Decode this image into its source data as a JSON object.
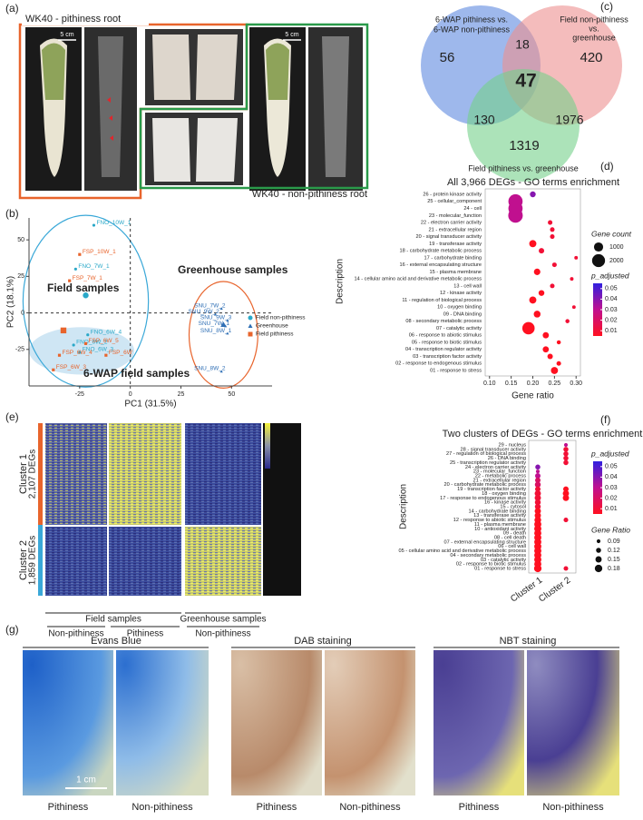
{
  "panel_labels": [
    "(a)",
    "(b)",
    "(c)",
    "(d)",
    "(e)",
    "(f)",
    "(g)"
  ],
  "panel_a": {
    "top_label": "WK40 - pithiness root",
    "bottom_label": "WK40 - non-pithiness root",
    "scale_bars": [
      "5 cm",
      "5 cm"
    ]
  },
  "panel_c": {
    "set_labels": [
      [
        "6-WAP pithiness vs.",
        "6-WAP non-pithiness"
      ],
      [
        "Field non-pithiness",
        "vs.",
        "greenhouse"
      ],
      [
        "Field pithiness vs. greenhouse"
      ]
    ],
    "counts": [
      56,
      18,
      420,
      47,
      130,
      1976,
      1319
    ]
  },
  "panel_e": {
    "clusters": [
      [
        "Cluster 1",
        "2,107 DEGs"
      ],
      [
        "Cluster 2",
        "1,859 DEGs"
      ]
    ],
    "groups": [
      "Field samples",
      "Greenhouse samples"
    ],
    "conditions": [
      "Non-pithiness",
      "Pithiness",
      "Non-pithiness"
    ]
  },
  "panel_g": {
    "stains": [
      "Evans Blue",
      "DAB staining",
      "NBT staining"
    ],
    "captions": [
      "Pithiness",
      "Non-pithiness"
    ],
    "scale_bar": "1 cm"
  },
  "chart_data": [
    {
      "type": "scatter",
      "xlabel": "PC1 (31.5%)",
      "ylabel": "PC2 (18.1%)",
      "xlim": [
        -50,
        70
      ],
      "ylim": [
        -50,
        65
      ],
      "xticks": [
        -25,
        0,
        25,
        50
      ],
      "yticks": [
        -25,
        0,
        25,
        50
      ],
      "annotations": [
        "Field samples",
        "Greenhouse samples",
        "6-WAP field samples"
      ],
      "series": [
        {
          "name": "Field non-pithiness",
          "color": "#2aa8c8",
          "marker": "circle",
          "x": [
            -18,
            -27,
            -21,
            -28,
            -25,
            -22
          ],
          "y": [
            60,
            30,
            -15,
            -22,
            -27,
            12
          ],
          "point_labels": [
            "FNO_10W_1",
            "FNO_7W_1",
            "FNO_6W_4",
            "FNO_6W_2",
            "FNO_6W_3",
            null
          ]
        },
        {
          "name": "Greenhouse",
          "color": "#2f6fb5",
          "marker": "triangle",
          "x": [
            45,
            42,
            48,
            47,
            48,
            45,
            46
          ],
          "y": [
            3,
            -1,
            -5,
            -9,
            -14,
            -40,
            -8
          ],
          "point_labels": [
            "SNU_7W_2",
            "SNU_9W_2",
            "SNU_9W_3",
            "SNU_7W_1",
            "SNU_8W_1",
            "SNU_8W_2",
            null
          ]
        },
        {
          "name": "Field pithiness",
          "color": "#e8642c",
          "marker": "square",
          "x": [
            -25,
            -30,
            -22,
            -35,
            -12,
            -38,
            -33
          ],
          "y": [
            40,
            22,
            -21,
            -29,
            -29,
            -39,
            -12
          ],
          "point_labels": [
            "FSP_10W_1",
            "FSP_7W_1",
            "FSP_6W_5",
            "FSP_6W_4",
            "FSP_6W",
            "FSP_6W_3",
            null
          ]
        }
      ]
    },
    {
      "type": "dot",
      "title": "All 3,966 DEGs - GO terms enrichment",
      "xlabel": "Gene ratio",
      "ylabel": "Description",
      "categories": [
        "26 - protein kinase activity",
        "25 - cellular_component",
        "24 - cell",
        "23 - molecular_function",
        "22 - electron carrier activity",
        "21 - extracellular region",
        "20 - signal transducer activity",
        "19 - transferase activity",
        "18 - carbohydrate metabolic process",
        "17 - carbohydrate binding",
        "16 - external encapsulating structure",
        "15 - plasma membrane",
        "14 - cellular amino acid and derivative metabolic process",
        "13 - cell wall",
        "12 - kinase activity",
        "11 - regulation of biological process",
        "10 - oxygen binding",
        "09 - DNA binding",
        "08 - secondary metabolic process",
        "07 - catalytic activity",
        "06 - response to abiotic stimulus",
        "05 - response to biotic stimulus",
        "04 - transcription regulator activity",
        "03 - transcription factor activity",
        "02 - response to endogenous stimulus",
        "01 - response to stress"
      ],
      "values": [
        0.2,
        0.16,
        0.16,
        0.16,
        0.24,
        0.245,
        0.245,
        0.2,
        0.22,
        0.3,
        0.25,
        0.21,
        0.29,
        0.245,
        0.22,
        0.2,
        0.295,
        0.21,
        0.28,
        0.19,
        0.23,
        0.26,
        0.23,
        0.24,
        0.26,
        0.25
      ],
      "gene_count": [
        400,
        2400,
        2400,
        2500,
        250,
        250,
        250,
        600,
        350,
        150,
        250,
        500,
        150,
        250,
        400,
        600,
        150,
        550,
        200,
        1800,
        450,
        200,
        450,
        350,
        250,
        600
      ],
      "p_adjusted": [
        0.04,
        0.03,
        0.03,
        0.03,
        0.01,
        0.01,
        0.01,
        0.005,
        0.01,
        0.01,
        0.01,
        0.005,
        0.01,
        0.01,
        0.005,
        0.005,
        0.01,
        0.005,
        0.01,
        0.005,
        0.005,
        0.005,
        0.005,
        0.005,
        0.005,
        0.005
      ],
      "xlim": [
        0.09,
        0.31
      ],
      "xticks": [
        {
          "value": 0.1,
          "label": "0.10"
        },
        0.15,
        {
          "value": 0.2,
          "label": "0.20"
        },
        0.25,
        {
          "value": 0.3,
          "label": "0.30"
        }
      ],
      "size_label": "Gene count",
      "size_ticks": [
        1000,
        2000
      ],
      "color_label": "p_adjusted",
      "clim": [
        0.005,
        0.055
      ],
      "color_ticks": [
        0.05,
        0.04,
        0.03,
        0.02,
        0.01
      ],
      "colors": [
        "#ff1020",
        "#c0108f",
        "#3020e0"
      ]
    },
    {
      "type": "cluster-dot",
      "title": "Two clusters of DEGs - GO terms enrichment",
      "ylabel": "Description",
      "categories": [
        "29 - nucleus",
        "28 - signal transducer activity",
        "27 - regulation of biological process",
        "26 - DNA binding",
        "25 - transcription regulator activity",
        "24 - electron carrier activity",
        "23 - molecular_function",
        "22 - metabolic process",
        "21 - extracellular region",
        "20 - carbohydrate metabolic process",
        "19 - transcription factor activity",
        "18 - oxygen binding",
        "17 - response to endogenous stimulus",
        "16 - kinase activity",
        "15 - cytosol",
        "14 - carbohydrate binding",
        "13 - transferase activity",
        "12 - response to abiotic stimulus",
        "11 - plasma membrane",
        "10 - antioxidant activity",
        "09 - death",
        "08 - cell death",
        "07 - external encapsulating structure",
        "06 - cell wall",
        "05 - cellular amino acid and derivative metabolic process",
        "04 - secondary metabolic process",
        "03 - catalytic activity",
        "02 - response to biotic stimulus",
        "01 - response to stress"
      ],
      "series": [
        {
          "name": "Cluster 1",
          "gene_ratio": [
            null,
            null,
            null,
            null,
            null,
            0.12,
            0.09,
            0.13,
            0.13,
            0.14,
            0.13,
            0.15,
            0.15,
            0.14,
            0.14,
            0.15,
            0.15,
            0.16,
            0.17,
            0.17,
            0.17,
            0.17,
            0.17,
            0.17,
            0.17,
            0.17,
            0.17,
            0.17,
            0.18
          ],
          "p_adjusted": [
            null,
            null,
            null,
            null,
            null,
            0.04,
            0.03,
            0.03,
            0.02,
            0.02,
            0.01,
            0.01,
            0.01,
            0.01,
            0.01,
            0.005,
            0.005,
            0.005,
            0.005,
            0.005,
            0.005,
            0.005,
            0.005,
            0.005,
            0.005,
            0.005,
            0.005,
            0.005,
            0.005
          ]
        },
        {
          "name": "Cluster 2",
          "gene_ratio": [
            0.09,
            0.12,
            0.12,
            0.12,
            0.12,
            null,
            null,
            null,
            null,
            null,
            0.13,
            0.15,
            0.15,
            null,
            null,
            null,
            null,
            0.11,
            null,
            null,
            null,
            null,
            null,
            null,
            null,
            null,
            null,
            null,
            0.11
          ],
          "p_adjusted": [
            0.03,
            0.01,
            0.01,
            0.01,
            0.01,
            null,
            null,
            null,
            null,
            null,
            0.005,
            0.005,
            0.005,
            null,
            null,
            null,
            null,
            0.01,
            null,
            null,
            null,
            null,
            null,
            null,
            null,
            null,
            null,
            null,
            0.01
          ]
        }
      ],
      "size_label": "Gene Ratio",
      "size_ticks": [
        0.09,
        0.12,
        0.15,
        0.18
      ],
      "color_label": "p_adjusted",
      "clim": [
        0.005,
        0.055
      ],
      "color_ticks": [
        0.05,
        0.04,
        0.03,
        0.02,
        0.01
      ],
      "colors": [
        "#ff1020",
        "#c0108f",
        "#3020e0"
      ]
    }
  ]
}
